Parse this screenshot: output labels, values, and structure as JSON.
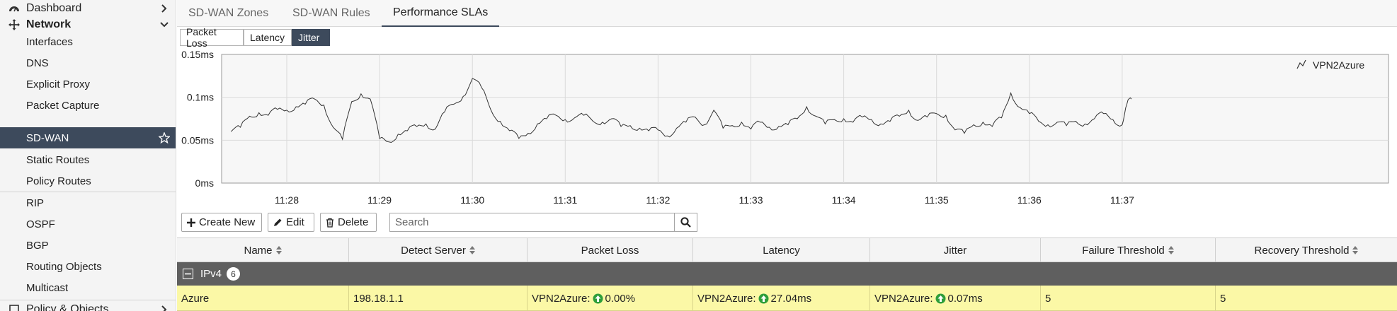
{
  "sidebar": {
    "dashboard": {
      "label": "Dashboard",
      "icon": "dashboard-icon"
    },
    "network": {
      "label": "Network",
      "icon": "network-icon"
    },
    "items": [
      {
        "label": "Interfaces"
      },
      {
        "label": "DNS"
      },
      {
        "label": "Explicit Proxy"
      },
      {
        "label": "Packet Capture"
      },
      {
        "label": "SD-WAN",
        "active": true
      },
      {
        "label": "Static Routes"
      },
      {
        "label": "Policy Routes"
      },
      {
        "label": "RIP"
      },
      {
        "label": "OSPF"
      },
      {
        "label": "BGP"
      },
      {
        "label": "Routing Objects"
      },
      {
        "label": "Multicast"
      }
    ],
    "policy": {
      "label": "Policy & Objects"
    }
  },
  "tabs": [
    {
      "label": "SD-WAN Zones"
    },
    {
      "label": "SD-WAN Rules"
    },
    {
      "label": "Performance SLAs",
      "active": true
    }
  ],
  "metric_tabs": [
    {
      "label": "Packet Loss"
    },
    {
      "label": "Latency"
    },
    {
      "label": "Jitter",
      "active": true
    }
  ],
  "chart_data": {
    "type": "line",
    "yticks": [
      "0.15ms",
      "0.1ms",
      "0.05ms",
      "0ms"
    ],
    "ylim": [
      0,
      0.15
    ],
    "xticks": [
      "11:28",
      "11:29",
      "11:30",
      "11:31",
      "11:32",
      "11:33",
      "11:34",
      "11:35",
      "11:36",
      "11:37"
    ],
    "grid": true,
    "legend_position": "top-right",
    "series": [
      {
        "name": "VPN2Azure",
        "color": "#333333",
        "points": [
          [
            "11:27:24",
            0.06
          ],
          [
            "11:27:30",
            0.065
          ],
          [
            "11:27:36",
            0.078
          ],
          [
            "11:27:42",
            0.082
          ],
          [
            "11:27:48",
            0.079
          ],
          [
            "11:27:54",
            0.086
          ],
          [
            "11:28:00",
            0.085
          ],
          [
            "11:28:06",
            0.089
          ],
          [
            "11:28:12",
            0.092
          ],
          [
            "11:28:18",
            0.098
          ],
          [
            "11:28:24",
            0.091
          ],
          [
            "11:28:30",
            0.065
          ],
          [
            "11:28:36",
            0.051
          ],
          [
            "11:28:42",
            0.095
          ],
          [
            "11:28:48",
            0.104
          ],
          [
            "11:28:54",
            0.098
          ],
          [
            "11:29:00",
            0.052
          ],
          [
            "11:29:06",
            0.048
          ],
          [
            "11:29:12",
            0.057
          ],
          [
            "11:29:18",
            0.061
          ],
          [
            "11:29:24",
            0.066
          ],
          [
            "11:29:30",
            0.069
          ],
          [
            "11:29:36",
            0.063
          ],
          [
            "11:29:42",
            0.083
          ],
          [
            "11:29:48",
            0.092
          ],
          [
            "11:29:54",
            0.101
          ],
          [
            "11:30:00",
            0.122
          ],
          [
            "11:30:06",
            0.111
          ],
          [
            "11:30:12",
            0.085
          ],
          [
            "11:30:18",
            0.072
          ],
          [
            "11:30:24",
            0.061
          ],
          [
            "11:30:30",
            0.052
          ],
          [
            "11:30:36",
            0.058
          ],
          [
            "11:30:42",
            0.069
          ],
          [
            "11:30:48",
            0.075
          ],
          [
            "11:30:54",
            0.079
          ],
          [
            "11:31:00",
            0.074
          ],
          [
            "11:31:06",
            0.076
          ],
          [
            "11:31:12",
            0.079
          ],
          [
            "11:31:18",
            0.072
          ],
          [
            "11:31:24",
            0.071
          ],
          [
            "11:31:30",
            0.075
          ],
          [
            "11:31:36",
            0.066
          ],
          [
            "11:31:42",
            0.067
          ],
          [
            "11:31:48",
            0.064
          ],
          [
            "11:31:54",
            0.061
          ],
          [
            "11:32:00",
            0.062
          ],
          [
            "11:32:06",
            0.055
          ],
          [
            "11:32:12",
            0.064
          ],
          [
            "11:32:18",
            0.071
          ],
          [
            "11:32:24",
            0.077
          ],
          [
            "11:32:30",
            0.068
          ],
          [
            "11:32:36",
            0.085
          ],
          [
            "11:32:42",
            0.064
          ],
          [
            "11:32:48",
            0.067
          ],
          [
            "11:32:54",
            0.071
          ],
          [
            "11:33:00",
            0.063
          ],
          [
            "11:33:06",
            0.071
          ],
          [
            "11:33:12",
            0.065
          ],
          [
            "11:33:18",
            0.066
          ],
          [
            "11:33:24",
            0.068
          ],
          [
            "11:33:30",
            0.075
          ],
          [
            "11:33:36",
            0.089
          ],
          [
            "11:33:42",
            0.078
          ],
          [
            "11:33:48",
            0.069
          ],
          [
            "11:33:54",
            0.074
          ],
          [
            "11:34:00",
            0.075
          ],
          [
            "11:34:06",
            0.071
          ],
          [
            "11:34:12",
            0.077
          ],
          [
            "11:34:18",
            0.074
          ],
          [
            "11:34:24",
            0.069
          ],
          [
            "11:34:30",
            0.072
          ],
          [
            "11:34:36",
            0.078
          ],
          [
            "11:34:42",
            0.085
          ],
          [
            "11:34:48",
            0.073
          ],
          [
            "11:34:54",
            0.077
          ],
          [
            "11:35:00",
            0.081
          ],
          [
            "11:35:06",
            0.079
          ],
          [
            "11:35:12",
            0.062
          ],
          [
            "11:35:18",
            0.058
          ],
          [
            "11:35:24",
            0.068
          ],
          [
            "11:35:30",
            0.071
          ],
          [
            "11:35:36",
            0.066
          ],
          [
            "11:35:42",
            0.076
          ],
          [
            "11:35:48",
            0.105
          ],
          [
            "11:35:54",
            0.088
          ],
          [
            "11:36:00",
            0.081
          ],
          [
            "11:36:06",
            0.072
          ],
          [
            "11:36:12",
            0.068
          ],
          [
            "11:36:18",
            0.071
          ],
          [
            "11:36:24",
            0.067
          ],
          [
            "11:36:30",
            0.072
          ],
          [
            "11:36:36",
            0.069
          ],
          [
            "11:36:42",
            0.075
          ],
          [
            "11:36:48",
            0.081
          ],
          [
            "11:36:54",
            0.074
          ],
          [
            "11:37:00",
            0.068
          ],
          [
            "11:37:03",
            0.092
          ],
          [
            "11:37:06",
            0.098
          ]
        ]
      }
    ]
  },
  "toolbar": {
    "create_label": "Create New",
    "edit_label": "Edit",
    "delete_label": "Delete",
    "search_placeholder": "Search"
  },
  "table": {
    "columns": [
      {
        "label": "Name",
        "sortable": true
      },
      {
        "label": "Detect Server",
        "sortable": true
      },
      {
        "label": "Packet Loss",
        "sortable": false
      },
      {
        "label": "Latency",
        "sortable": false
      },
      {
        "label": "Jitter",
        "sortable": false
      },
      {
        "label": "Failure Threshold",
        "sortable": true
      },
      {
        "label": "Recovery Threshold",
        "sortable": true
      }
    ],
    "group": {
      "label": "IPv4",
      "count": "6"
    },
    "rows": [
      {
        "name": "Azure",
        "detect_server": "198.18.1.1",
        "packet_loss_prefix": "VPN2Azure:",
        "packet_loss": "0.00%",
        "latency_prefix": "VPN2Azure:",
        "latency": "27.04ms",
        "jitter_prefix": "VPN2Azure:",
        "jitter": "0.07ms",
        "failure_threshold": "5",
        "recovery_threshold": "5"
      }
    ]
  },
  "colors": {
    "sidebar_active": "#3d4a5c",
    "row_highlight": "#fbf8a6",
    "status_up": "#2e9e3a"
  }
}
